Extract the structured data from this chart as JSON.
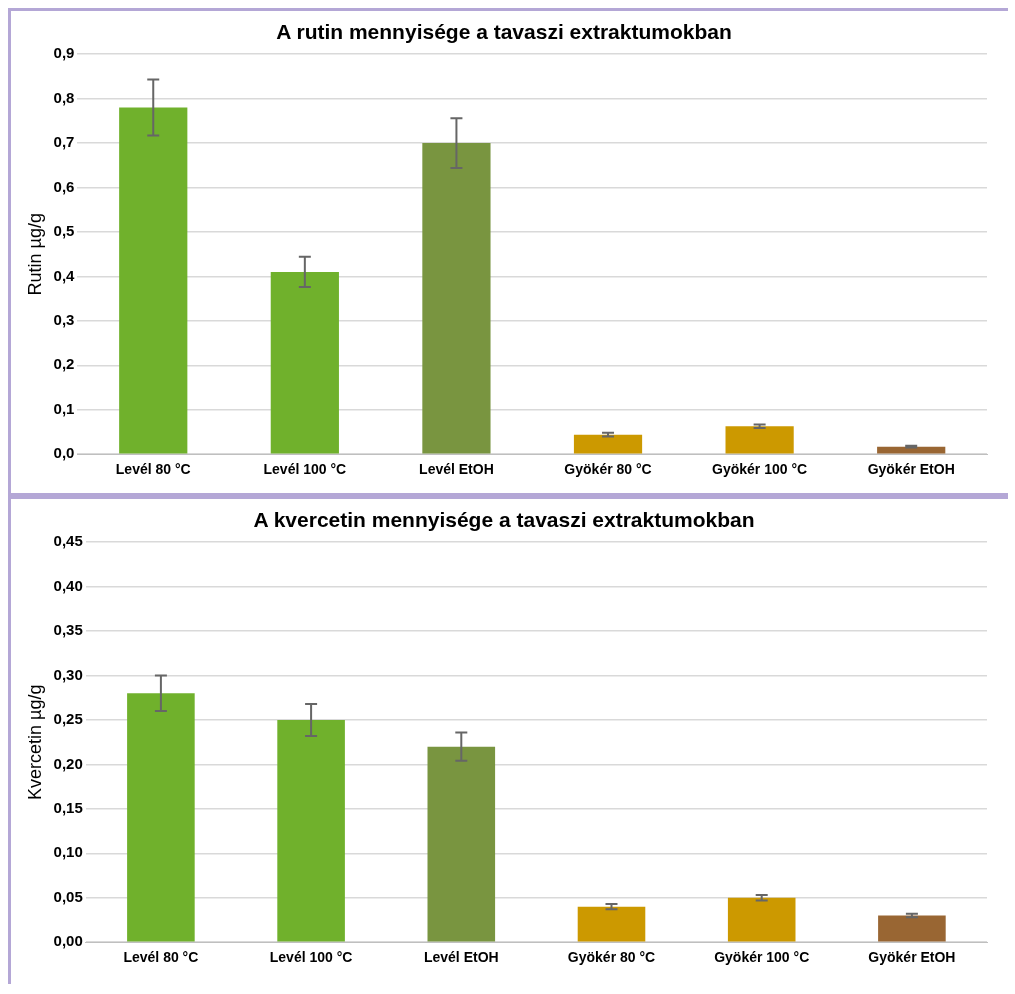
{
  "chart_data": [
    {
      "type": "bar",
      "title": "A rutin mennyisége a tavaszi extraktumokban",
      "ylabel": "Rutin µg/g",
      "categories": [
        "Levél 80 °C",
        "Levél 100 °C",
        "Levél EtOH",
        "Gyökér 80 °C",
        "Gyökér 100 °C",
        "Gyökér EtOH"
      ],
      "values": [
        0.78,
        0.41,
        0.7,
        0.044,
        0.063,
        0.017
      ],
      "errors": [
        0.063,
        0.034,
        0.056,
        0.004,
        0.004,
        0.002
      ],
      "colors": [
        "#70b12c",
        "#70b12c",
        "#799540",
        "#cc9900",
        "#cc9900",
        "#996633"
      ],
      "ylim": [
        0,
        0.9
      ],
      "yticks": [
        {
          "value": 0,
          "label": "0,0"
        },
        {
          "value": 0.1,
          "label": "0,1"
        },
        {
          "value": 0.2,
          "label": "0,2"
        },
        {
          "value": 0.3,
          "label": "0,3"
        },
        {
          "value": 0.4,
          "label": "0,4"
        },
        {
          "value": 0.5,
          "label": "0,5"
        },
        {
          "value": 0.6,
          "label": "0,6"
        },
        {
          "value": 0.7,
          "label": "0,7"
        },
        {
          "value": 0.8,
          "label": "0,8"
        },
        {
          "value": 0.9,
          "label": "0,9"
        }
      ],
      "grid": "y",
      "legend": false
    },
    {
      "type": "bar",
      "title": "A kvercetin mennyisége a tavaszi extraktumokban",
      "ylabel": "Kvercetin µg/g",
      "categories": [
        "Levél 80 °C",
        "Levél 100 °C",
        "Levél EtOH",
        "Gyökér 80 °C",
        "Gyökér 100 °C",
        "Gyökér EtOH"
      ],
      "values": [
        0.28,
        0.25,
        0.22,
        0.04,
        0.05,
        0.03
      ],
      "errors": [
        0.02,
        0.018,
        0.016,
        0.003,
        0.003,
        0.002
      ],
      "colors": [
        "#70b12c",
        "#70b12c",
        "#799540",
        "#cc9900",
        "#cc9900",
        "#996633"
      ],
      "ylim": [
        0,
        0.45
      ],
      "yticks": [
        {
          "value": 0,
          "label": "0,00"
        },
        {
          "value": 0.05,
          "label": "0,05"
        },
        {
          "value": 0.1,
          "label": "0,10"
        },
        {
          "value": 0.15,
          "label": "0,15"
        },
        {
          "value": 0.2,
          "label": "0,20"
        },
        {
          "value": 0.25,
          "label": "0,25"
        },
        {
          "value": 0.3,
          "label": "0,30"
        },
        {
          "value": 0.35,
          "label": "0,35"
        },
        {
          "value": 0.4,
          "label": "0,40"
        },
        {
          "value": 0.45,
          "label": "0,45"
        }
      ],
      "grid": "y",
      "legend": false
    }
  ]
}
